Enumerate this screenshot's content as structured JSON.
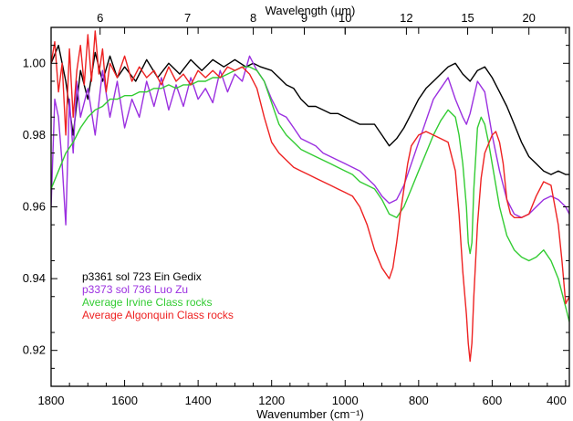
{
  "chart_data": {
    "type": "line",
    "xlabel": "Wavenumber (cm⁻¹)",
    "x2label": "Wavelength (μm)",
    "xlim": [
      1800,
      390
    ],
    "ylim": [
      0.91,
      1.01
    ],
    "x_ticks": [
      1800,
      1600,
      1400,
      1200,
      1000,
      800,
      600,
      400
    ],
    "x_tick_labels": [
      "1800",
      "1600",
      "1400",
      "1200",
      "1000",
      "800",
      "600",
      "400"
    ],
    "y_ticks": [
      0.92,
      0.94,
      0.96,
      0.98,
      1.0
    ],
    "y_tick_labels": [
      "0.92",
      "0.94",
      "0.96",
      "0.98",
      "1.00"
    ],
    "top_ticks_um": [
      6,
      7,
      8,
      9,
      10,
      12,
      15,
      20
    ],
    "top_tick_labels": [
      "6",
      "7",
      "8",
      "9",
      "10",
      "12",
      "15",
      "20"
    ],
    "legend_position": "bottom-left",
    "series": [
      {
        "name": "p3361 sol 723 Ein Gedix",
        "color": "#000000",
        "x": [
          1800,
          1780,
          1760,
          1740,
          1720,
          1700,
          1680,
          1660,
          1640,
          1620,
          1600,
          1570,
          1540,
          1510,
          1480,
          1450,
          1420,
          1390,
          1360,
          1330,
          1300,
          1270,
          1250,
          1230,
          1200,
          1180,
          1160,
          1140,
          1120,
          1100,
          1080,
          1060,
          1040,
          1020,
          1000,
          980,
          960,
          940,
          920,
          900,
          880,
          860,
          840,
          820,
          800,
          780,
          760,
          740,
          720,
          700,
          680,
          660,
          640,
          620,
          600,
          580,
          560,
          540,
          520,
          500,
          480,
          460,
          440,
          420,
          400,
          390
        ],
        "values": [
          1.0,
          1.005,
          0.995,
          0.98,
          0.998,
          0.99,
          1.003,
          0.995,
          1.002,
          0.996,
          0.999,
          0.995,
          1.001,
          0.996,
          1.0,
          0.997,
          1.001,
          0.998,
          1.001,
          0.999,
          1.001,
          0.999,
          1.0,
          0.999,
          0.998,
          0.996,
          0.994,
          0.993,
          0.99,
          0.988,
          0.988,
          0.987,
          0.986,
          0.986,
          0.985,
          0.984,
          0.983,
          0.983,
          0.983,
          0.98,
          0.977,
          0.979,
          0.982,
          0.986,
          0.99,
          0.993,
          0.995,
          0.997,
          0.999,
          1.0,
          0.997,
          0.995,
          0.998,
          0.999,
          0.996,
          0.992,
          0.988,
          0.983,
          0.978,
          0.974,
          0.972,
          0.97,
          0.969,
          0.97,
          0.969,
          0.969
        ]
      },
      {
        "name": "p3373 sol 736 Luo Zu",
        "color": "#9b30e0",
        "x": [
          1800,
          1790,
          1780,
          1770,
          1760,
          1750,
          1740,
          1730,
          1720,
          1700,
          1680,
          1660,
          1640,
          1620,
          1600,
          1580,
          1560,
          1540,
          1520,
          1500,
          1480,
          1460,
          1440,
          1420,
          1400,
          1380,
          1360,
          1340,
          1320,
          1300,
          1280,
          1260,
          1240,
          1220,
          1200,
          1180,
          1160,
          1140,
          1120,
          1100,
          1080,
          1060,
          1040,
          1020,
          1000,
          980,
          960,
          940,
          920,
          900,
          880,
          860,
          840,
          820,
          800,
          780,
          760,
          740,
          720,
          700,
          680,
          670,
          660,
          640,
          620,
          600,
          580,
          560,
          540,
          520,
          500,
          480,
          460,
          440,
          420,
          400,
          390
        ],
        "values": [
          0.96,
          0.99,
          0.985,
          0.972,
          0.955,
          0.99,
          0.975,
          0.995,
          0.985,
          0.993,
          0.98,
          0.998,
          0.985,
          0.995,
          0.982,
          0.99,
          0.985,
          0.995,
          0.988,
          0.996,
          0.987,
          0.994,
          0.988,
          0.996,
          0.99,
          0.993,
          0.989,
          0.998,
          0.992,
          0.997,
          0.995,
          1.002,
          0.998,
          0.995,
          0.99,
          0.986,
          0.985,
          0.982,
          0.979,
          0.978,
          0.977,
          0.975,
          0.974,
          0.973,
          0.972,
          0.971,
          0.97,
          0.968,
          0.966,
          0.963,
          0.961,
          0.962,
          0.966,
          0.972,
          0.978,
          0.984,
          0.99,
          0.993,
          0.996,
          0.99,
          0.985,
          0.983,
          0.986,
          0.995,
          0.992,
          0.98,
          0.97,
          0.962,
          0.958,
          0.957,
          0.958,
          0.96,
          0.962,
          0.963,
          0.962,
          0.96,
          0.958
        ]
      },
      {
        "name": "Average Irvine Class rocks",
        "color": "#33cc33",
        "x": [
          1800,
          1780,
          1760,
          1740,
          1720,
          1700,
          1680,
          1660,
          1640,
          1620,
          1600,
          1580,
          1560,
          1540,
          1520,
          1500,
          1480,
          1460,
          1440,
          1420,
          1400,
          1380,
          1360,
          1340,
          1320,
          1300,
          1280,
          1260,
          1240,
          1220,
          1200,
          1180,
          1160,
          1140,
          1120,
          1100,
          1080,
          1060,
          1040,
          1020,
          1000,
          980,
          960,
          940,
          920,
          900,
          880,
          860,
          840,
          820,
          800,
          780,
          760,
          740,
          720,
          700,
          690,
          680,
          670,
          665,
          660,
          655,
          650,
          640,
          630,
          620,
          610,
          600,
          580,
          560,
          540,
          520,
          500,
          480,
          460,
          440,
          420,
          400,
          390
        ],
        "values": [
          0.965,
          0.97,
          0.975,
          0.978,
          0.982,
          0.985,
          0.987,
          0.988,
          0.99,
          0.99,
          0.991,
          0.991,
          0.992,
          0.992,
          0.993,
          0.993,
          0.994,
          0.993,
          0.994,
          0.994,
          0.995,
          0.995,
          0.996,
          0.996,
          0.997,
          0.998,
          0.999,
          0.999,
          0.998,
          0.995,
          0.989,
          0.983,
          0.98,
          0.978,
          0.976,
          0.975,
          0.974,
          0.973,
          0.972,
          0.971,
          0.97,
          0.969,
          0.967,
          0.966,
          0.965,
          0.962,
          0.958,
          0.957,
          0.96,
          0.965,
          0.97,
          0.975,
          0.98,
          0.984,
          0.987,
          0.985,
          0.98,
          0.972,
          0.96,
          0.95,
          0.947,
          0.95,
          0.965,
          0.982,
          0.985,
          0.983,
          0.978,
          0.972,
          0.96,
          0.952,
          0.948,
          0.946,
          0.945,
          0.946,
          0.948,
          0.945,
          0.94,
          0.932,
          0.928
        ]
      },
      {
        "name": "Average Algonquin Class rocks",
        "color": "#ee2222",
        "x": [
          1800,
          1790,
          1780,
          1770,
          1760,
          1750,
          1740,
          1730,
          1720,
          1710,
          1700,
          1690,
          1680,
          1670,
          1660,
          1650,
          1640,
          1620,
          1600,
          1580,
          1560,
          1540,
          1520,
          1500,
          1480,
          1460,
          1440,
          1420,
          1400,
          1380,
          1360,
          1340,
          1320,
          1300,
          1280,
          1260,
          1240,
          1220,
          1200,
          1180,
          1160,
          1140,
          1120,
          1100,
          1080,
          1060,
          1040,
          1020,
          1000,
          980,
          960,
          940,
          920,
          900,
          880,
          870,
          860,
          850,
          840,
          830,
          820,
          800,
          780,
          760,
          740,
          720,
          700,
          690,
          680,
          670,
          665,
          660,
          655,
          650,
          640,
          630,
          620,
          600,
          590,
          580,
          570,
          560,
          550,
          540,
          520,
          500,
          480,
          460,
          440,
          420,
          410,
          400,
          390
        ],
        "values": [
          1.0,
          1.006,
          0.992,
          1.0,
          0.98,
          1.004,
          0.985,
          0.998,
          1.005,
          0.994,
          1.008,
          0.995,
          1.009,
          0.997,
          1.004,
          0.992,
          1.0,
          0.996,
          1.002,
          0.995,
          0.999,
          0.996,
          0.998,
          0.994,
          0.999,
          0.995,
          0.997,
          0.994,
          0.998,
          0.996,
          0.998,
          0.996,
          0.999,
          0.998,
          0.999,
          0.997,
          0.993,
          0.985,
          0.978,
          0.975,
          0.973,
          0.971,
          0.97,
          0.969,
          0.968,
          0.967,
          0.966,
          0.965,
          0.964,
          0.963,
          0.96,
          0.955,
          0.948,
          0.943,
          0.94,
          0.943,
          0.95,
          0.958,
          0.965,
          0.972,
          0.977,
          0.98,
          0.981,
          0.98,
          0.979,
          0.978,
          0.97,
          0.958,
          0.942,
          0.93,
          0.922,
          0.917,
          0.922,
          0.935,
          0.955,
          0.968,
          0.975,
          0.98,
          0.981,
          0.978,
          0.972,
          0.962,
          0.958,
          0.957,
          0.957,
          0.958,
          0.963,
          0.967,
          0.966,
          0.955,
          0.945,
          0.933,
          0.935
        ]
      }
    ]
  }
}
